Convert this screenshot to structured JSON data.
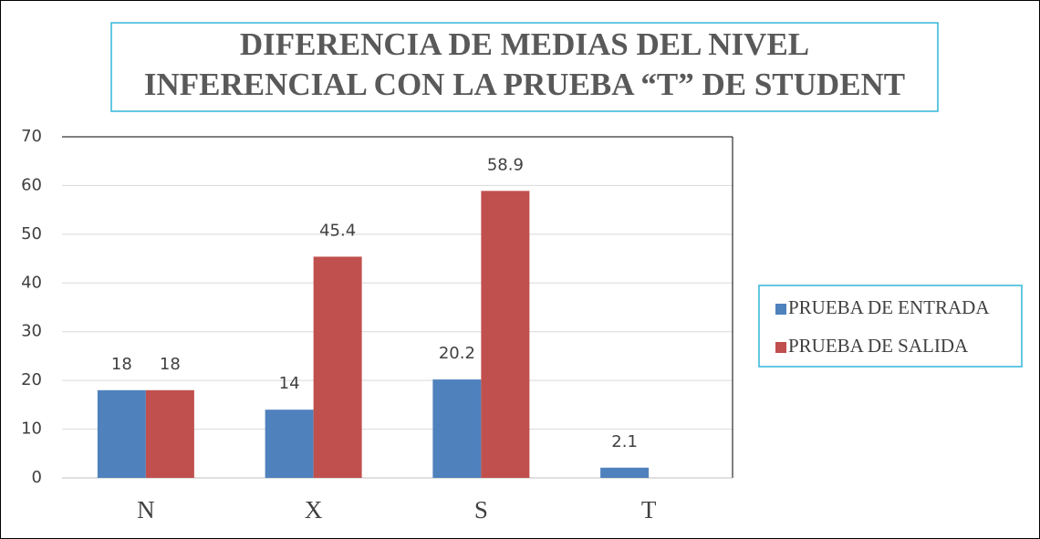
{
  "chart_data": {
    "type": "bar",
    "title": [
      "DIFERENCIA DE MEDIAS DEL NIVEL",
      "INFERENCIAL CON LA PRUEBA “T” DE STUDENT"
    ],
    "categories": [
      "N",
      "X",
      "S",
      "T"
    ],
    "series": [
      {
        "name": "PRUEBA DE ENTRADA",
        "color": "#4f81bd",
        "values": [
          18,
          14,
          20.2,
          2.1
        ]
      },
      {
        "name": "PRUEBA DE SALIDA",
        "color": "#c0504d",
        "values": [
          18,
          45.4,
          58.9,
          null
        ]
      }
    ],
    "ylim": [
      0,
      70
    ],
    "yticks": [
      0,
      10,
      20,
      30,
      40,
      50,
      60,
      70
    ],
    "grid": true,
    "legend": "right"
  }
}
